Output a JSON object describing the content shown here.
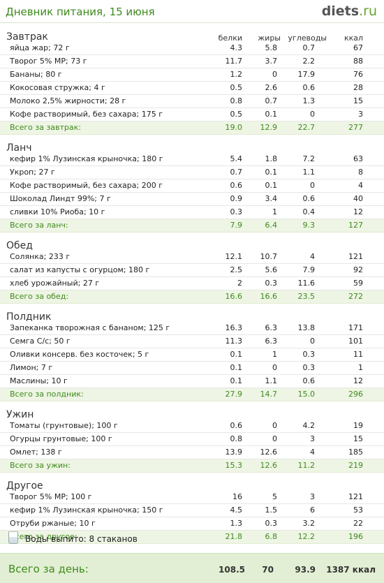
{
  "header": {
    "title": "Дневник питания, 15 июня",
    "logo_main": "diets",
    "logo_tld": ".ru"
  },
  "columns": {
    "protein": "белки",
    "fat": "жиры",
    "carbs": "углеводы",
    "kcal": "ккал"
  },
  "sections": [
    {
      "title": "Завтрак",
      "show_columns": true,
      "rows": [
        {
          "name": "яйца жар; 72 г",
          "p": "4.3",
          "f": "5.8",
          "c": "0.7",
          "k": "67"
        },
        {
          "name": "Творог 5% МР; 73 г",
          "p": "11.7",
          "f": "3.7",
          "c": "2.2",
          "k": "88"
        },
        {
          "name": "Бананы; 80 г",
          "p": "1.2",
          "f": "0",
          "c": "17.9",
          "k": "76"
        },
        {
          "name": "Кокосовая стружка; 4 г",
          "p": "0.5",
          "f": "2.6",
          "c": "0.6",
          "k": "28"
        },
        {
          "name": "Молоко 2,5% жирности; 28 г",
          "p": "0.8",
          "f": "0.7",
          "c": "1.3",
          "k": "15"
        },
        {
          "name": "Кофе растворимый, без сахара; 175 г",
          "p": "0.5",
          "f": "0.1",
          "c": "0",
          "k": "3"
        }
      ],
      "total": {
        "name": "Всего за завтрак:",
        "p": "19.0",
        "f": "12.9",
        "c": "22.7",
        "k": "277"
      }
    },
    {
      "title": "Ланч",
      "show_columns": false,
      "rows": [
        {
          "name": "кефир 1% Лузинская крыночка; 180 г",
          "p": "5.4",
          "f": "1.8",
          "c": "7.2",
          "k": "63"
        },
        {
          "name": "Укроп; 27 г",
          "p": "0.7",
          "f": "0.1",
          "c": "1.1",
          "k": "8"
        },
        {
          "name": "Кофе растворимый, без сахара; 200 г",
          "p": "0.6",
          "f": "0.1",
          "c": "0",
          "k": "4"
        },
        {
          "name": "Шоколад Линдт 99%; 7 г",
          "p": "0.9",
          "f": "3.4",
          "c": "0.6",
          "k": "40"
        },
        {
          "name": "сливки 10% Риоба; 10 г",
          "p": "0.3",
          "f": "1",
          "c": "0.4",
          "k": "12"
        }
      ],
      "total": {
        "name": "Всего за ланч:",
        "p": "7.9",
        "f": "6.4",
        "c": "9.3",
        "k": "127"
      }
    },
    {
      "title": "Обед",
      "show_columns": false,
      "rows": [
        {
          "name": "Солянка; 233 г",
          "p": "12.1",
          "f": "10.7",
          "c": "4",
          "k": "121"
        },
        {
          "name": "салат из капусты с огурцом; 180 г",
          "p": "2.5",
          "f": "5.6",
          "c": "7.9",
          "k": "92"
        },
        {
          "name": "хлеб урожайный; 27 г",
          "p": "2",
          "f": "0.3",
          "c": "11.6",
          "k": "59"
        }
      ],
      "total": {
        "name": "Всего за обед:",
        "p": "16.6",
        "f": "16.6",
        "c": "23.5",
        "k": "272"
      }
    },
    {
      "title": "Полдник",
      "show_columns": false,
      "rows": [
        {
          "name": "Запеканка творожная с бананом; 125 г",
          "p": "16.3",
          "f": "6.3",
          "c": "13.8",
          "k": "171"
        },
        {
          "name": "Семга С/с; 50 г",
          "p": "11.3",
          "f": "6.3",
          "c": "0",
          "k": "101"
        },
        {
          "name": "Оливки консерв. без косточек; 5 г",
          "p": "0.1",
          "f": "1",
          "c": "0.3",
          "k": "11"
        },
        {
          "name": "Лимон; 7 г",
          "p": "0.1",
          "f": "0",
          "c": "0.3",
          "k": "1"
        },
        {
          "name": "Маслины; 10 г",
          "p": "0.1",
          "f": "1.1",
          "c": "0.6",
          "k": "12"
        }
      ],
      "total": {
        "name": "Всего за полдник:",
        "p": "27.9",
        "f": "14.7",
        "c": "15.0",
        "k": "296"
      }
    },
    {
      "title": "Ужин",
      "show_columns": false,
      "rows": [
        {
          "name": "Томаты (грунтовые); 100 г",
          "p": "0.6",
          "f": "0",
          "c": "4.2",
          "k": "19"
        },
        {
          "name": "Огурцы грунтовые; 100 г",
          "p": "0.8",
          "f": "0",
          "c": "3",
          "k": "15"
        },
        {
          "name": "Омлет; 138 г",
          "p": "13.9",
          "f": "12.6",
          "c": "4",
          "k": "185"
        }
      ],
      "total": {
        "name": "Всего за ужин:",
        "p": "15.3",
        "f": "12.6",
        "c": "11.2",
        "k": "219"
      }
    },
    {
      "title": "Другое",
      "show_columns": false,
      "rows": [
        {
          "name": "Творог 5% МР; 100 г",
          "p": "16",
          "f": "5",
          "c": "3",
          "k": "121"
        },
        {
          "name": "кефир 1% Лузинская крыночка; 150 г",
          "p": "4.5",
          "f": "1.5",
          "c": "6",
          "k": "53"
        },
        {
          "name": "Отруби ржаные; 10 г",
          "p": "1.3",
          "f": "0.3",
          "c": "3.2",
          "k": "22"
        }
      ],
      "total": {
        "name": "Всего за другое:",
        "p": "21.8",
        "f": "6.8",
        "c": "12.2",
        "k": "196"
      }
    }
  ],
  "water": {
    "icon": "glass-icon",
    "text": "Воды выпито: 8 стаканов"
  },
  "day_total": {
    "label": "Всего за день:",
    "p": "108.5",
    "f": "70",
    "c": "93.9",
    "k": "1387 ккал"
  },
  "colors": {
    "accent": "#3e8a1c",
    "total_bg": "#eef5e4",
    "day_total_bg": "#e3efd4"
  }
}
